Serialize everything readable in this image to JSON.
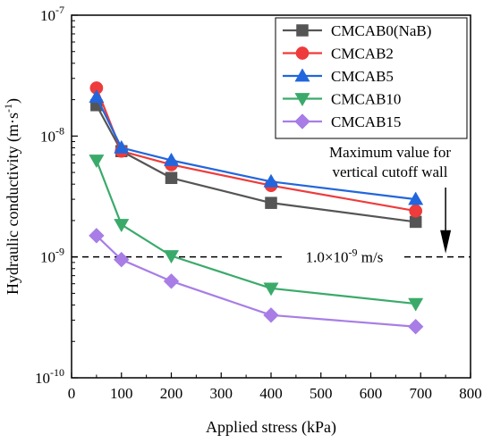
{
  "chart_data": {
    "type": "line",
    "x_scale": "linear",
    "y_scale": "log",
    "xlim": [
      0,
      800
    ],
    "ylim": [
      1e-10,
      1e-07
    ],
    "xlabel": "Applied stress (kPa)",
    "ylabel_main": "Hydraulic conductivity (m·s",
    "ylabel_sup": "-1",
    "ylabel_end": ")",
    "x_ticks": [
      0,
      100,
      200,
      300,
      400,
      500,
      600,
      700,
      800
    ],
    "x_tick_labels": [
      "0",
      "100",
      "200",
      "300",
      "400",
      "500",
      "600",
      "700",
      "800"
    ],
    "y_ticks": [
      1e-10,
      1e-09,
      1e-08,
      1e-07
    ],
    "y_tick_labels": [
      {
        "base": "10",
        "exp": "-10"
      },
      {
        "base": "10",
        "exp": "-9"
      },
      {
        "base": "10",
        "exp": "-8"
      },
      {
        "base": "10",
        "exp": "-7"
      }
    ],
    "grid": false,
    "legend_position": "top-right",
    "series": [
      {
        "name": "CMCAB0(NaB)",
        "color": "#555555",
        "marker": "square",
        "x": [
          50,
          100,
          200,
          400,
          690
        ],
        "y": [
          1.8e-08,
          7.5e-09,
          4.5e-09,
          2.8e-09,
          1.95e-09
        ]
      },
      {
        "name": "CMCAB2",
        "color": "#ee3b3b",
        "marker": "circle",
        "x": [
          50,
          100,
          200,
          400,
          690
        ],
        "y": [
          2.5e-08,
          7.5e-09,
          5.8e-09,
          3.9e-09,
          2.4e-09
        ]
      },
      {
        "name": "CMCAB5",
        "color": "#2266dd",
        "marker": "triangle-up",
        "x": [
          50,
          100,
          200,
          400,
          690
        ],
        "y": [
          2.1e-08,
          8e-09,
          6.3e-09,
          4.2e-09,
          3e-09
        ]
      },
      {
        "name": "CMCAB10",
        "color": "#3aaa6a",
        "marker": "triangle-down",
        "x": [
          50,
          100,
          200,
          400,
          690
        ],
        "y": [
          6.3e-09,
          1.85e-09,
          1.02e-09,
          5.5e-10,
          4.1e-10
        ]
      },
      {
        "name": "CMCAB15",
        "color": "#a87de6",
        "marker": "diamond",
        "x": [
          50,
          100,
          200,
          400,
          690
        ],
        "y": [
          1.5e-09,
          9.5e-10,
          6.3e-10,
          3.3e-10,
          2.65e-10
        ]
      }
    ],
    "reference_line": {
      "y": 1e-09,
      "label_coeff": "1.0×10",
      "label_exp": "-9",
      "label_unit": " m/s"
    },
    "annotation": {
      "line1": "Maximum value for",
      "line2": "vertical cutoff wall",
      "arrow_x": 750,
      "arrow_from_y": 3.3e-09,
      "arrow_to_y": 1.05e-09
    }
  }
}
